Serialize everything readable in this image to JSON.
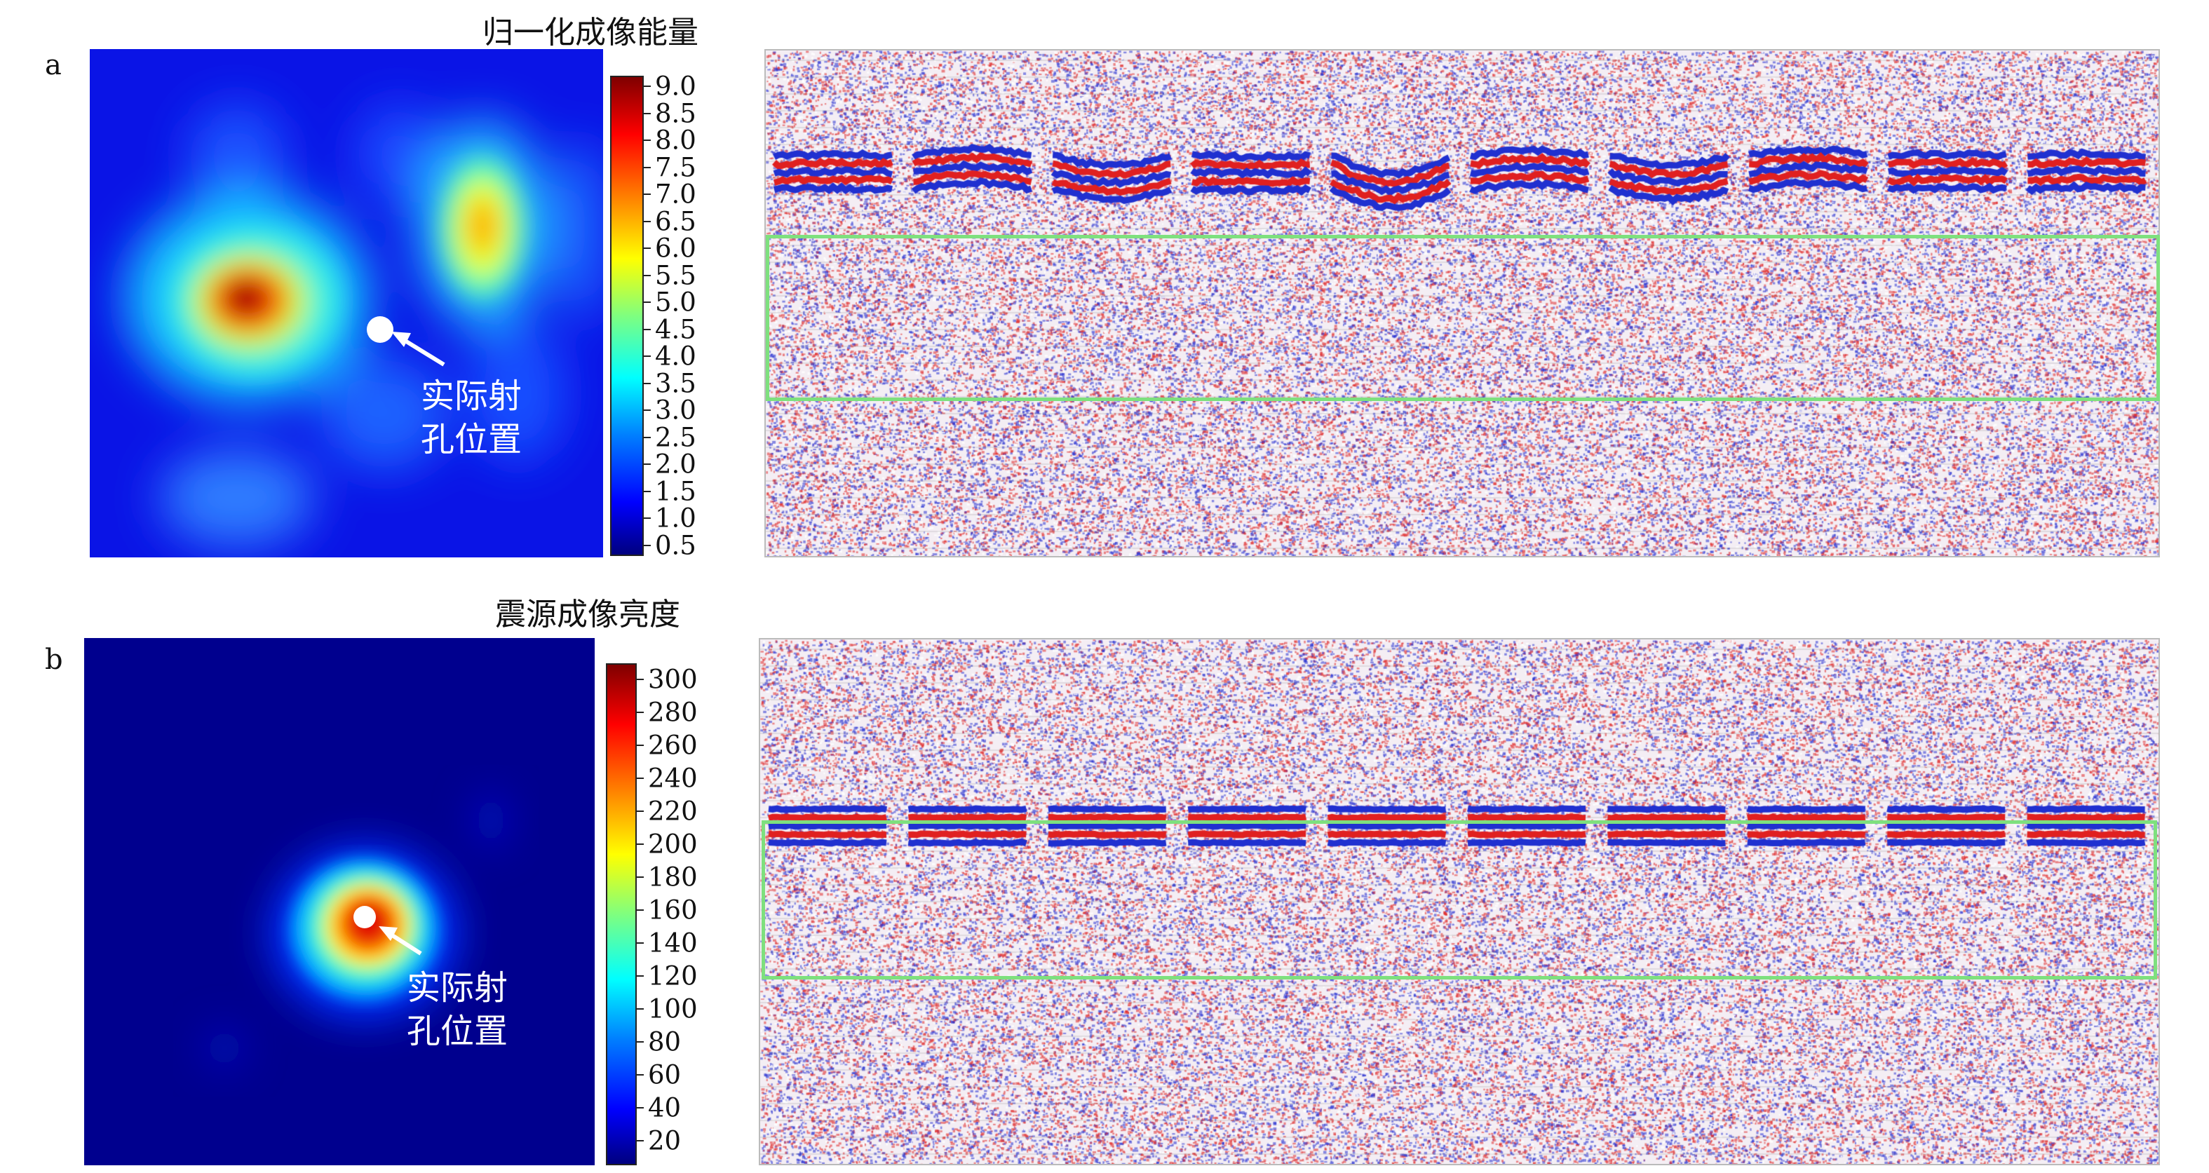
{
  "panels": [
    {
      "letter": "a",
      "colorbar_title": "归一化成像能量",
      "colorbar_ticks": [
        "0.5",
        "1.0",
        "1.5",
        "2.0",
        "2.5",
        "3.0",
        "3.5",
        "4.0",
        "4.5",
        "5.0",
        "5.5",
        "6.0",
        "6.5",
        "7.0",
        "7.5",
        "8.0",
        "8.5",
        "9.0"
      ],
      "annotation_line1": "实际射",
      "annotation_line2": "孔位置"
    },
    {
      "letter": "b",
      "colorbar_title": "震源成像亮度",
      "colorbar_ticks": [
        "20",
        "40",
        "60",
        "80",
        "100",
        "120",
        "140",
        "160",
        "180",
        "200",
        "220",
        "240",
        "260",
        "280",
        "300"
      ],
      "annotation_line1": "实际射",
      "annotation_line2": "孔位置"
    }
  ],
  "colors": {
    "jet": [
      "#00007f",
      "#0000ff",
      "#007fff",
      "#00ffff",
      "#7fff7f",
      "#ffff00",
      "#ff7f00",
      "#ff0000",
      "#7f0000"
    ],
    "highlight_box": "#7ee07e",
    "seismic_positive": "#e02020",
    "seismic_negative": "#2030d0"
  },
  "chart_data": [
    {
      "type": "heatmap",
      "title": "归一化成像能量",
      "colorbar_range": [
        0.3,
        9.2
      ],
      "colorbar_ticks": [
        0.5,
        1.0,
        1.5,
        2.0,
        2.5,
        3.0,
        3.5,
        4.0,
        4.5,
        5.0,
        5.5,
        6.0,
        6.5,
        7.0,
        7.5,
        8.0,
        8.5,
        9.0
      ],
      "marker": "实际射孔位置"
    },
    {
      "type": "heatmap",
      "title": "震源成像亮度",
      "colorbar_range": [
        5,
        310
      ],
      "colorbar_ticks": [
        20,
        40,
        60,
        80,
        100,
        120,
        140,
        160,
        180,
        200,
        220,
        240,
        260,
        280,
        300
      ],
      "marker": "实际射孔位置"
    }
  ]
}
